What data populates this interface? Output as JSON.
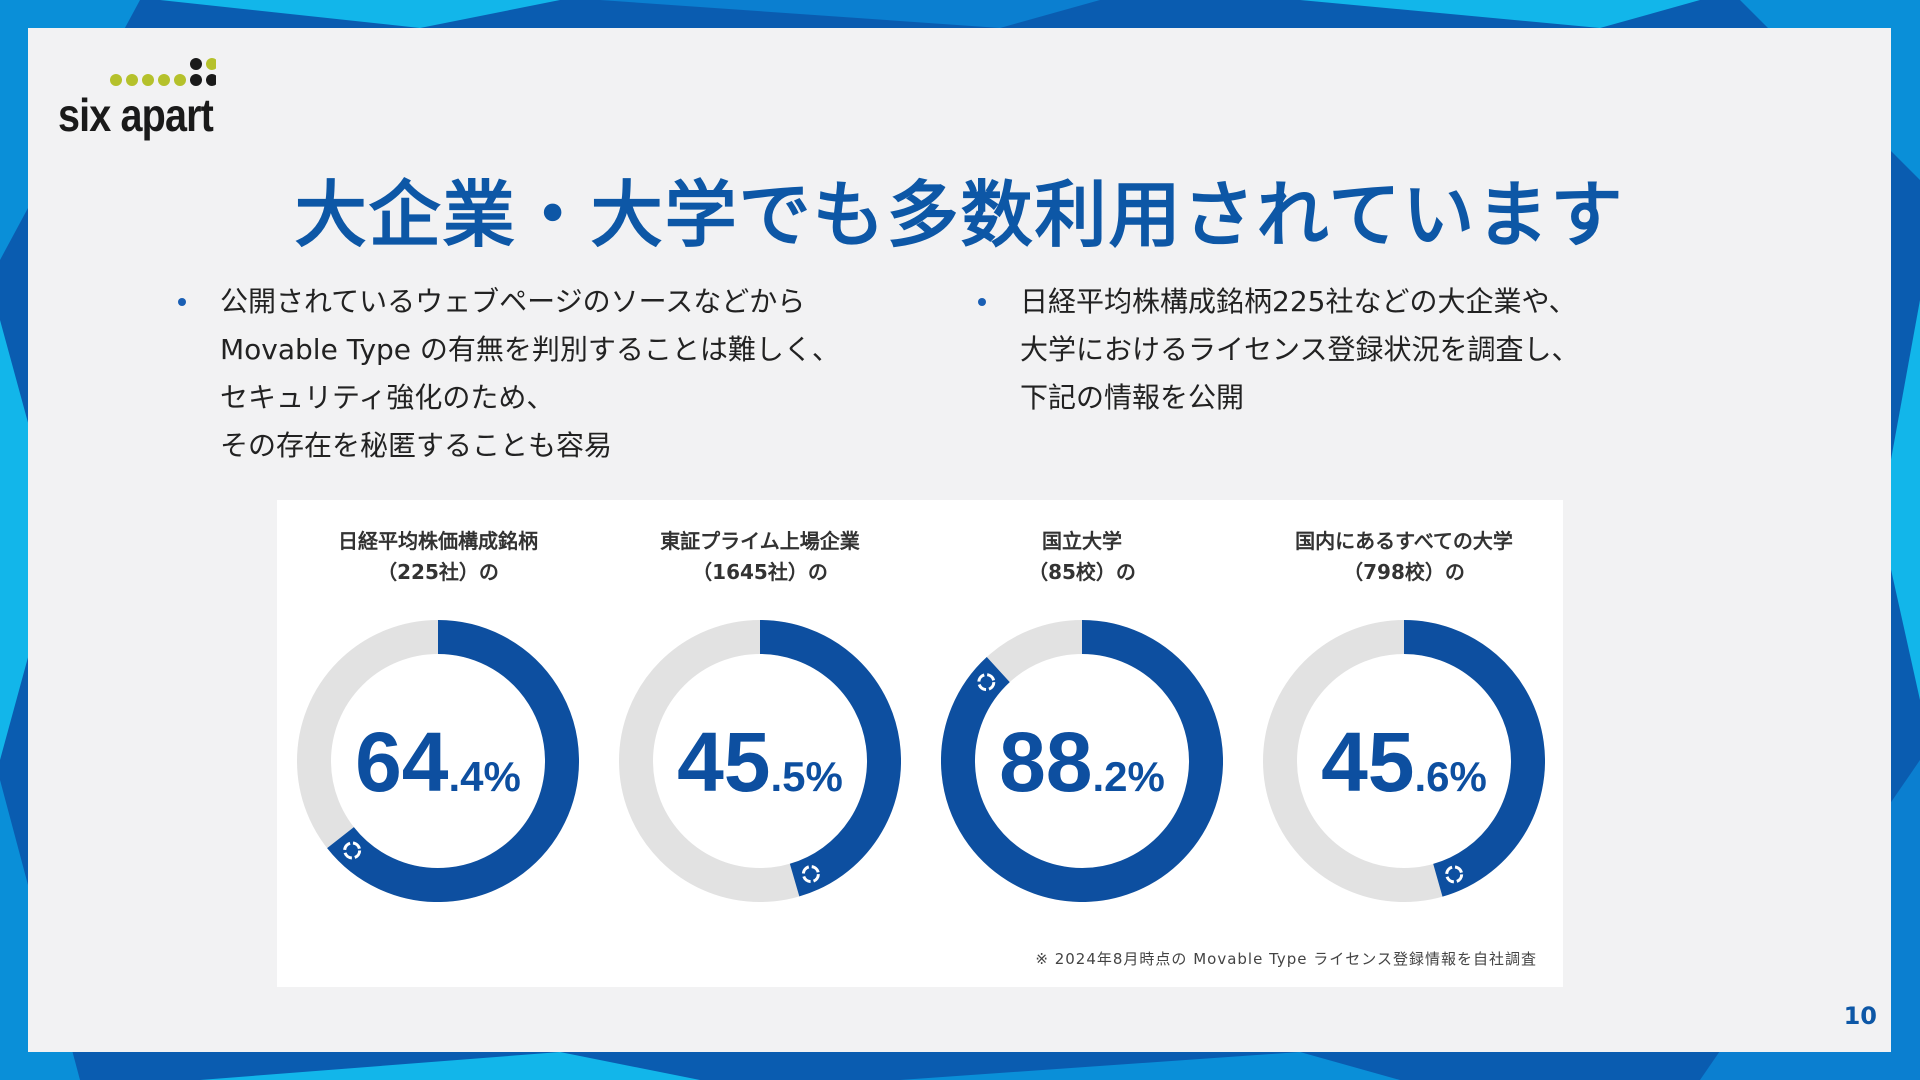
{
  "logo": {
    "text": "six apart",
    "dot_colors": [
      "#b5c12b",
      "#1a1a1a"
    ]
  },
  "title": "大企業・大学でも多数利用されています",
  "bullets_left": [
    "公開されているウェブページのソースなどから",
    " Movable Type の有無を判別することは難しく、",
    "セキュリティ強化のため、",
    "その存在を秘匿することも容易"
  ],
  "bullets_right": [
    "日経平均株構成銘柄225社などの大企業や、",
    "大学におけるライセンス登録状況を調査し、",
    "下記の情報を公開"
  ],
  "chart_data": [
    {
      "type": "pie",
      "label_lines": [
        "日経平均株価構成銘柄",
        "（225社）の"
      ],
      "value": 64.4,
      "int_part": "64",
      "dec_part": ".4",
      "unit": "%"
    },
    {
      "type": "pie",
      "label_lines": [
        "東証プライム上場企業",
        "（1645社）の"
      ],
      "value": 45.5,
      "int_part": "45",
      "dec_part": ".5",
      "unit": "%"
    },
    {
      "type": "pie",
      "label_lines": [
        "国立大学",
        "（85校）の"
      ],
      "value": 88.2,
      "int_part": "88",
      "dec_part": ".2",
      "unit": "%"
    },
    {
      "type": "pie",
      "label_lines": [
        "国内にあるすべての大学",
        "（798校）の"
      ],
      "value": 45.6,
      "int_part": "45",
      "dec_part": ".6",
      "unit": "%"
    }
  ],
  "footnote": "※ 2024年8月時点の Movable Type ライセンス登録情報を自社調査",
  "page_number": "10",
  "colors": {
    "accent": "#0d57a6",
    "ring_fill": "#0d4fa0",
    "ring_track": "#e2e2e2",
    "background": "#0a5cb0",
    "slide": "#f2f2f3"
  }
}
